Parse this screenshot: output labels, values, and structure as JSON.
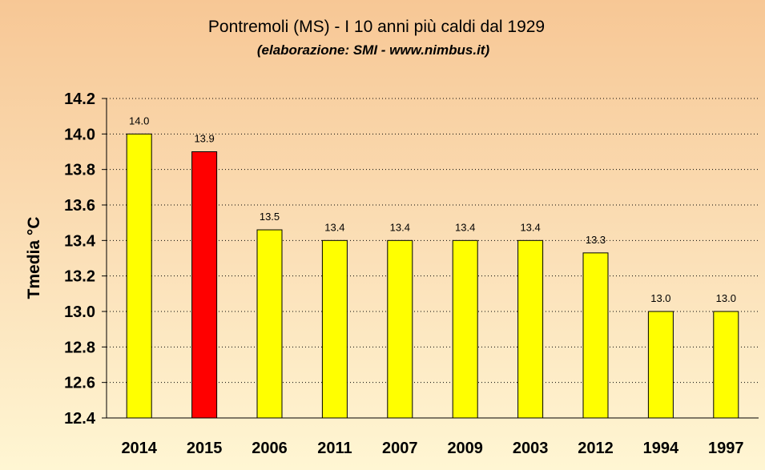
{
  "chart_data": {
    "type": "bar",
    "title": "Pontremoli (MS) - I 10 anni più caldi dal 1929",
    "subtitle": "(elaborazione: SMI - www.nimbus.it)",
    "xlabel": "",
    "ylabel": "Tmedia °C",
    "ylim": [
      12.4,
      14.2
    ],
    "yticks": [
      12.4,
      12.6,
      12.8,
      13.0,
      13.2,
      13.4,
      13.6,
      13.8,
      14.0,
      14.2
    ],
    "ytick_labels": [
      "12.4",
      "12.6",
      "12.8",
      "13.0",
      "13.2",
      "13.4",
      "13.6",
      "13.8",
      "14.0",
      "14.2"
    ],
    "grid": true,
    "legend": "none",
    "categories": [
      "2014",
      "2015",
      "2006",
      "2011",
      "2007",
      "2009",
      "2003",
      "2012",
      "1994",
      "1997"
    ],
    "values": [
      14.0,
      13.9,
      13.46,
      13.4,
      13.4,
      13.4,
      13.4,
      13.33,
      13.0,
      13.0
    ],
    "data_labels": [
      "14.0",
      "13.9",
      "13.5",
      "13.4",
      "13.4",
      "13.4",
      "13.4",
      "13.3",
      "13.0",
      "13.0"
    ],
    "colors": [
      "#ffff00",
      "#ff0000",
      "#ffff00",
      "#ffff00",
      "#ffff00",
      "#ffff00",
      "#ffff00",
      "#ffff00",
      "#ffff00",
      "#ffff00"
    ]
  }
}
